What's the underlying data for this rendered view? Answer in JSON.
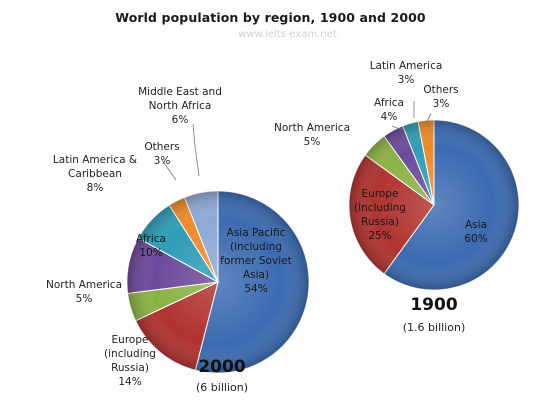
{
  "title": "World population by region, 1900  and 2000",
  "watermark": "www.ielts-exam.net",
  "chart_data": [
    {
      "type": "pie",
      "year": "2000",
      "subtitle": "(6 billion)",
      "slices": [
        {
          "label": [
            "Asia Pacific",
            "(including",
            "former Soviet",
            "Asia)"
          ],
          "value": 54,
          "pct": "54%",
          "color": "#3C6BB1"
        },
        {
          "label": [
            "Europe",
            "(including",
            "Russia)"
          ],
          "value": 14,
          "pct": "14%",
          "color": "#B0332F"
        },
        {
          "label": [
            "North America"
          ],
          "value": 5,
          "pct": "5%",
          "color": "#8CB245"
        },
        {
          "label": [
            "Africa"
          ],
          "value": 10,
          "pct": "10%",
          "color": "#6C4A9B"
        },
        {
          "label": [
            "Latin America &",
            "Caribbean"
          ],
          "value": 8,
          "pct": "8%",
          "color": "#2F9DB6"
        },
        {
          "label": [
            "Others"
          ],
          "value": 3,
          "pct": "3%",
          "color": "#EE8A2B"
        },
        {
          "label": [
            "Middle East and",
            "North Africa"
          ],
          "value": 6,
          "pct": "6%",
          "color": "#8FA8D6"
        }
      ]
    },
    {
      "type": "pie",
      "year": "1900",
      "subtitle": "(1.6 billion)",
      "slices": [
        {
          "label": [
            "Asia"
          ],
          "value": 60,
          "pct": "60%",
          "color": "#3C6BB1"
        },
        {
          "label": [
            "Europe",
            "(including",
            "Russia)"
          ],
          "value": 25,
          "pct": "25%",
          "color": "#B0332F"
        },
        {
          "label": [
            "North America"
          ],
          "value": 5,
          "pct": "5%",
          "color": "#8CB245"
        },
        {
          "label": [
            "Africa"
          ],
          "value": 4,
          "pct": "4%",
          "color": "#6C4A9B"
        },
        {
          "label": [
            "Latin America"
          ],
          "value": 3,
          "pct": "3%",
          "color": "#2F9DB6"
        },
        {
          "label": [
            "Others"
          ],
          "value": 3,
          "pct": "3%",
          "color": "#EE8A2B"
        }
      ]
    }
  ]
}
